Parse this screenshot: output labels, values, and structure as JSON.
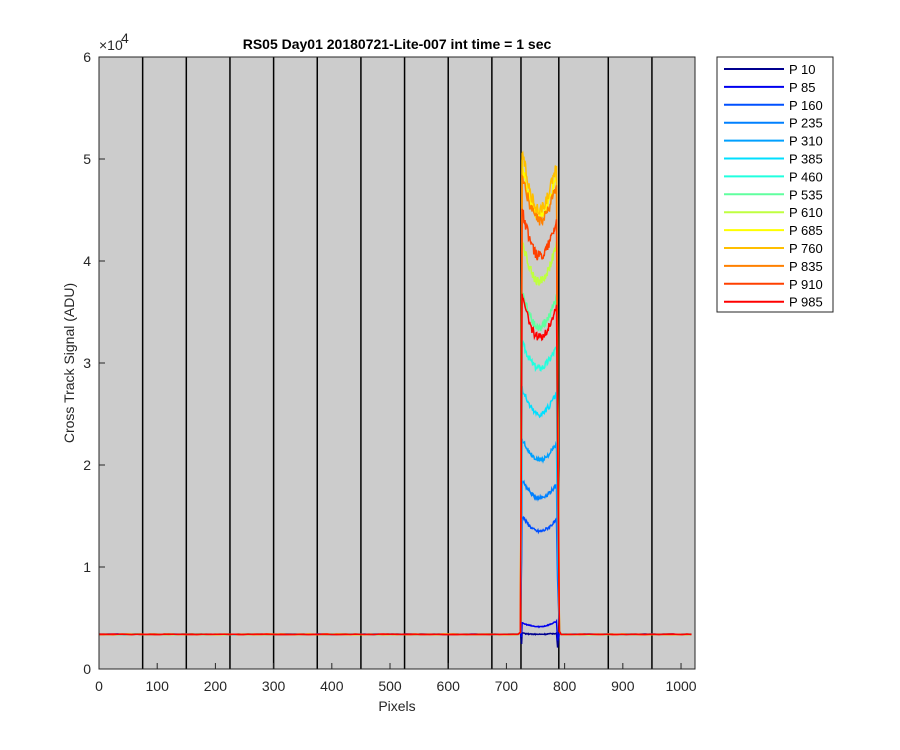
{
  "chart_data": {
    "type": "line",
    "title": "RS05 Day01 20180721-Lite-007 int time = 1 sec",
    "xlabel": "Pixels",
    "ylabel": "Cross Track Signal (ADU)",
    "y_exponent_label": "×10",
    "y_exponent_power": "4",
    "xlim": [
      0,
      1024
    ],
    "ylim": [
      0,
      60000
    ],
    "x_ticks": [
      0,
      100,
      200,
      300,
      400,
      500,
      600,
      700,
      800,
      900,
      1000
    ],
    "y_ticks": [
      0,
      1,
      2,
      3,
      4,
      5,
      6
    ],
    "y_tick_scale": 10000,
    "background_color": "#cccccc",
    "vertical_lines": [
      75,
      150,
      225,
      300,
      375,
      450,
      525,
      600,
      675,
      725,
      790,
      875,
      950
    ],
    "baseline": 3400,
    "illuminated_region": [
      726,
      786
    ],
    "legend_position": "outside-top-right",
    "series": [
      {
        "name": "P 10",
        "color": "#00008f",
        "left": 3500,
        "min": 3400,
        "right": 3500
      },
      {
        "name": "P 85",
        "color": "#0000ef",
        "left": 4500,
        "min": 4150,
        "right": 4650
      },
      {
        "name": "P 160",
        "color": "#0050ff",
        "left": 15000,
        "min": 13500,
        "right": 14600
      },
      {
        "name": "P 235",
        "color": "#0080ff",
        "left": 18500,
        "min": 16800,
        "right": 18000
      },
      {
        "name": "P 310",
        "color": "#00a0ff",
        "left": 22500,
        "min": 20500,
        "right": 22000
      },
      {
        "name": "P 385",
        "color": "#00dfff",
        "left": 27500,
        "min": 25000,
        "right": 27000
      },
      {
        "name": "P 460",
        "color": "#20ffdf",
        "left": 32000,
        "min": 29500,
        "right": 31500
      },
      {
        "name": "P 535",
        "color": "#60ff9f",
        "left": 37000,
        "min": 33500,
        "right": 36500
      },
      {
        "name": "P 610",
        "color": "#bfff40",
        "left": 42000,
        "min": 38000,
        "right": 41500
      },
      {
        "name": "P 685",
        "color": "#ffff00",
        "left": 49500,
        "min": 44500,
        "right": 48500
      },
      {
        "name": "P 760",
        "color": "#ffbf00",
        "left": 51000,
        "min": 45000,
        "right": 49500
      },
      {
        "name": "P 835",
        "color": "#ff8000",
        "left": 48500,
        "min": 44000,
        "right": 47500
      },
      {
        "name": "P 910",
        "color": "#ff4000",
        "left": 45000,
        "min": 40500,
        "right": 44000
      },
      {
        "name": "P 985",
        "color": "#ff0000",
        "left": 36500,
        "min": 32500,
        "right": 35500
      }
    ]
  }
}
